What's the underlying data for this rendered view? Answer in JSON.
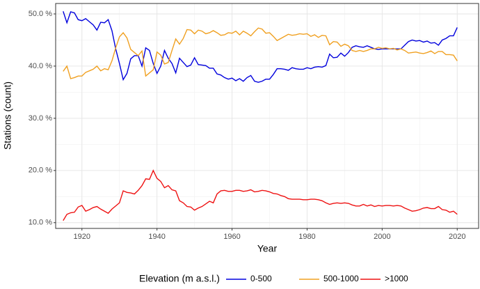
{
  "chart_data": {
    "type": "line",
    "x_label": "Year",
    "y_label": "Stations (count)",
    "legend_title": "Elevation (m a.s.l.)",
    "legend_position": "bottom",
    "x": [
      1915,
      1916,
      1917,
      1918,
      1919,
      1920,
      1921,
      1922,
      1923,
      1924,
      1925,
      1926,
      1927,
      1928,
      1929,
      1930,
      1931,
      1932,
      1933,
      1934,
      1935,
      1936,
      1937,
      1938,
      1939,
      1940,
      1941,
      1942,
      1943,
      1944,
      1945,
      1946,
      1947,
      1948,
      1949,
      1950,
      1951,
      1952,
      1953,
      1954,
      1955,
      1956,
      1957,
      1958,
      1959,
      1960,
      1961,
      1962,
      1963,
      1964,
      1965,
      1966,
      1967,
      1968,
      1969,
      1970,
      1971,
      1972,
      1973,
      1974,
      1975,
      1976,
      1977,
      1978,
      1979,
      1980,
      1981,
      1982,
      1983,
      1984,
      1985,
      1986,
      1987,
      1988,
      1989,
      1990,
      1991,
      1992,
      1993,
      1994,
      1995,
      1996,
      1997,
      1998,
      1999,
      2000,
      2001,
      2002,
      2003,
      2004,
      2005,
      2006,
      2007,
      2008,
      2009,
      2010,
      2011,
      2012,
      2013,
      2014,
      2015,
      2016,
      2017,
      2018,
      2019,
      2020
    ],
    "series": [
      {
        "name": "0-500",
        "color": "#0000dd",
        "values": [
          50.5,
          48.3,
          50.4,
          50.2,
          48.9,
          48.7,
          49.1,
          48.5,
          47.9,
          46.9,
          48.4,
          48.3,
          48.9,
          46.8,
          43.3,
          40.5,
          37.4,
          38.6,
          41.4,
          42.0,
          42.0,
          40.0,
          43.5,
          43.0,
          40.5,
          38.6,
          40.0,
          43.0,
          41.5,
          40.5,
          38.7,
          41.5,
          40.7,
          39.9,
          40.2,
          41.6,
          40.3,
          40.2,
          40.1,
          39.6,
          39.6,
          38.5,
          38.3,
          37.8,
          37.5,
          37.7,
          37.2,
          37.6,
          37.1,
          37.8,
          38.2,
          37.1,
          36.9,
          37.1,
          37.5,
          37.5,
          38.4,
          39.5,
          39.5,
          39.4,
          39.2,
          39.7,
          39.5,
          39.4,
          39.4,
          39.7,
          39.5,
          39.8,
          39.9,
          39.8,
          40.1,
          42.3,
          41.6,
          41.7,
          42.5,
          41.9,
          42.6,
          43.6,
          43.9,
          43.7,
          43.6,
          43.9,
          43.6,
          43.3,
          43.2,
          43.3,
          43.3,
          43.3,
          43.3,
          43.3,
          43.3,
          44.0,
          44.7,
          45.0,
          44.8,
          44.9,
          44.6,
          44.8,
          44.4,
          44.5,
          44.0,
          45.0,
          45.3,
          45.8,
          45.8,
          47.4
        ]
      },
      {
        "name": "500-1000",
        "color": "#f0a020",
        "values": [
          39.0,
          40.0,
          37.6,
          37.8,
          38.1,
          38.1,
          38.8,
          39.1,
          39.4,
          40.0,
          39.1,
          39.5,
          39.3,
          41.0,
          43.5,
          45.6,
          46.4,
          45.4,
          43.2,
          42.6,
          42.0,
          42.9,
          38.1,
          38.7,
          39.3,
          42.7,
          42.1,
          40.4,
          40.7,
          43.0,
          45.2,
          44.2,
          45.3,
          47.0,
          46.9,
          46.2,
          46.9,
          46.7,
          46.2,
          46.4,
          46.8,
          46.4,
          45.9,
          46.0,
          46.4,
          46.3,
          46.7,
          46.0,
          46.7,
          46.3,
          45.8,
          46.6,
          47.3,
          47.1,
          46.3,
          46.4,
          45.7,
          44.9,
          45.3,
          45.7,
          46.1,
          45.9,
          46.0,
          46.2,
          46.1,
          46.2,
          45.7,
          46.0,
          45.5,
          45.9,
          45.8,
          44.1,
          44.7,
          44.6,
          43.8,
          44.2,
          43.9,
          43.0,
          42.8,
          43.0,
          42.8,
          43.0,
          43.3,
          43.3,
          43.6,
          43.4,
          43.5,
          43.3,
          43.4,
          43.1,
          43.3,
          43.0,
          42.5,
          42.6,
          42.7,
          42.5,
          42.4,
          42.6,
          42.9,
          42.4,
          42.8,
          42.8,
          42.2,
          42.2,
          42.1,
          41.0
        ]
      },
      {
        "name": ">1000",
        "color": "#ee1111",
        "values": [
          10.4,
          11.6,
          11.9,
          12.0,
          13.0,
          13.3,
          12.2,
          12.5,
          12.9,
          13.1,
          12.6,
          12.2,
          11.8,
          12.6,
          13.2,
          13.8,
          16.1,
          15.8,
          15.7,
          15.5,
          16.2,
          17.1,
          18.4,
          18.3,
          20.0,
          18.5,
          17.9,
          16.7,
          17.1,
          16.3,
          16.1,
          14.2,
          13.8,
          13.1,
          13.0,
          12.4,
          12.8,
          13.1,
          13.6,
          14.1,
          13.8,
          15.5,
          16.1,
          16.2,
          16.0,
          16.0,
          16.2,
          16.2,
          16.0,
          16.1,
          16.3,
          15.9,
          16.0,
          16.2,
          16.1,
          15.9,
          15.6,
          15.5,
          15.2,
          15.0,
          14.6,
          14.5,
          14.5,
          14.5,
          14.4,
          14.4,
          14.5,
          14.5,
          14.4,
          14.2,
          13.8,
          13.5,
          13.7,
          13.8,
          13.7,
          13.8,
          13.7,
          13.4,
          13.2,
          13.2,
          13.5,
          13.2,
          13.4,
          13.1,
          13.3,
          13.2,
          13.3,
          13.3,
          13.2,
          13.3,
          13.2,
          12.8,
          12.5,
          12.2,
          12.3,
          12.5,
          12.8,
          12.9,
          12.7,
          12.7,
          13.1,
          12.5,
          12.4,
          12.0,
          12.2,
          11.6
        ]
      }
    ],
    "xlim": [
      1913,
      2025.7
    ],
    "xticks": [
      1920,
      1940,
      1960,
      1980,
      2000,
      2020
    ],
    "xminorticks": [
      1930,
      1950,
      1970,
      1990,
      2010
    ],
    "ylim": [
      8.9,
      52.0
    ],
    "yticks": [
      {
        "value": 10,
        "label": "10.0 %"
      },
      {
        "value": 20,
        "label": "20.0 %"
      },
      {
        "value": 30,
        "label": "30.0 %"
      },
      {
        "value": 40,
        "label": "40.0 %"
      },
      {
        "value": 50,
        "label": "50.0 %"
      }
    ],
    "yminorticks": [
      15,
      25,
      35,
      45
    ],
    "grid": true
  }
}
